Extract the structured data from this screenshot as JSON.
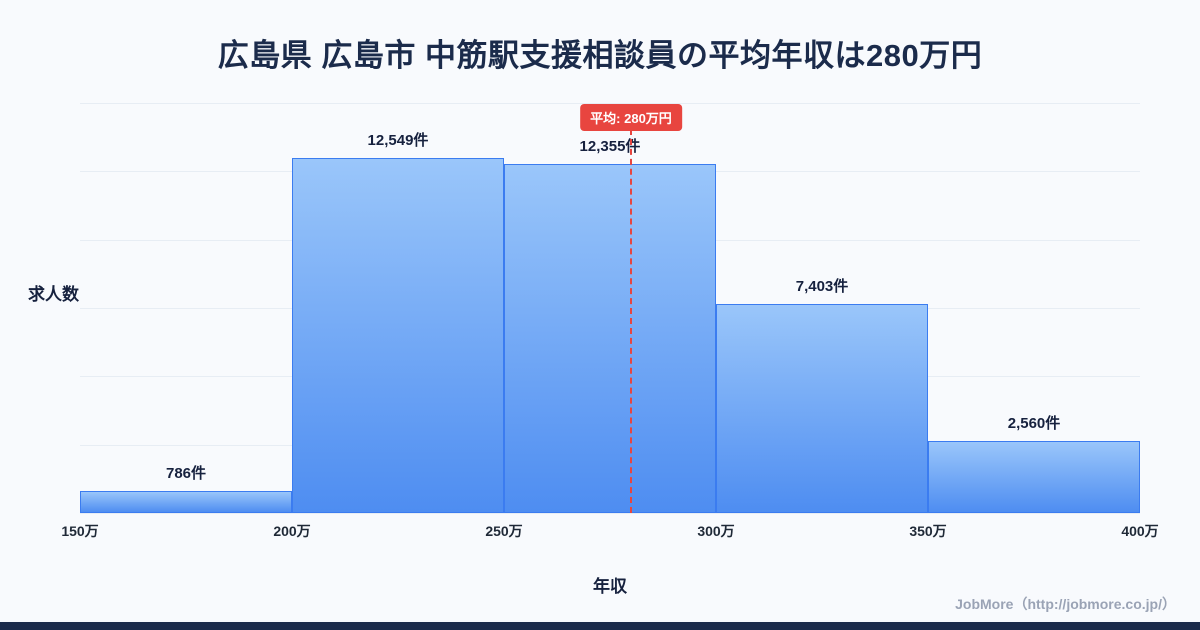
{
  "page": {
    "title": "広島県 広島市 中筋駅支援相談員の平均年収は280万円",
    "footer": "JobMore（http://jobmore.co.jp/）"
  },
  "chart_data": {
    "type": "bar",
    "title": "広島県 広島市 中筋駅支援相談員の平均年収は280万円",
    "xlabel": "年収",
    "ylabel": "求人数",
    "x_ticks": [
      "150万",
      "200万",
      "250万",
      "300万",
      "350万",
      "400万"
    ],
    "x_range": [
      150,
      400
    ],
    "ylim": [
      0,
      14500
    ],
    "grid": true,
    "legend": "none",
    "bins": [
      {
        "range": "150万-200万",
        "count": 786,
        "label": "786件"
      },
      {
        "range": "200万-250万",
        "count": 12549,
        "label": "12,549件"
      },
      {
        "range": "250万-300万",
        "count": 12355,
        "label": "12,355件"
      },
      {
        "range": "300万-350万",
        "count": 7403,
        "label": "7,403件"
      },
      {
        "range": "350万-400万",
        "count": 2560,
        "label": "2,560件"
      }
    ],
    "average_line": {
      "value": 280,
      "unit": "万円",
      "label": "平均: 280万円"
    },
    "colors": {
      "bar_gradient_top": "#9ac6fa",
      "bar_gradient_bottom": "#4e8df1",
      "bar_border": "#3b7cf0",
      "average_line": "#e8453f",
      "badge_background": "#e8453f",
      "badge_text": "#ffffff",
      "title_text": "#1b2b4b",
      "value_label_text": "#16213e",
      "footer_text": "#9aa3b5",
      "bottom_bar": "#1b2b4b",
      "background": "#f8fafd"
    }
  }
}
